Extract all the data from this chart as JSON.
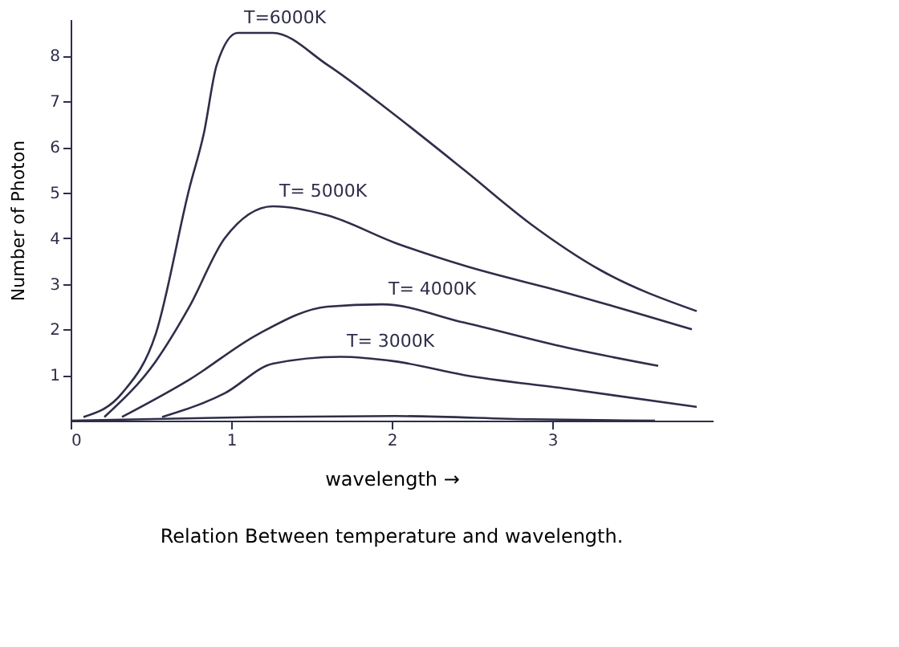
{
  "chart_data": {
    "type": "line",
    "title": "Relation Between temperature and wavelength.",
    "xlabel": "wavelength →",
    "ylabel": "Number of Photon",
    "xlim": [
      0,
      4
    ],
    "xticks": [
      0,
      1,
      2,
      3
    ],
    "ylim": [
      0,
      8.8
    ],
    "yticks": [
      1,
      2,
      3,
      4,
      5,
      6,
      7,
      8
    ],
    "grid": false,
    "marker": "none",
    "line_style": "solid",
    "series": [
      {
        "name": "T=6000K",
        "color": "#2e2e4a",
        "x": [
          0.08,
          0.32,
          0.53,
          0.74,
          0.83,
          0.91,
          1.04,
          1.26,
          1.6,
          2.02,
          2.45,
          2.87,
          3.3,
          3.9
        ],
        "values": [
          0.08,
          0.6,
          1.9,
          5.1,
          6.3,
          7.8,
          8.5,
          8.5,
          7.8,
          6.7,
          5.5,
          4.3,
          3.3,
          2.4
        ]
      },
      {
        "name": "T= 5000K",
        "color": "#2e2e4a",
        "x": [
          0.21,
          0.53,
          0.74,
          0.96,
          1.26,
          1.6,
          2.02,
          2.45,
          3.09,
          3.87
        ],
        "values": [
          0.08,
          1.3,
          2.5,
          4.0,
          4.7,
          4.5,
          3.9,
          3.4,
          2.8,
          2.0
        ]
      },
      {
        "name": "T= 4000K",
        "color": "#2e2e4a",
        "x": [
          0.32,
          0.74,
          1.17,
          1.6,
          1.94,
          2.45,
          3.09,
          3.66
        ],
        "values": [
          0.08,
          0.9,
          1.9,
          2.5,
          2.55,
          2.15,
          1.6,
          1.2
        ]
      },
      {
        "name": "T= 3000K",
        "color": "#2e2e4a",
        "x": [
          0.57,
          0.96,
          1.26,
          1.68,
          2.02,
          2.45,
          3.09,
          3.9
        ],
        "values": [
          0.08,
          0.6,
          1.25,
          1.4,
          1.3,
          1.0,
          0.7,
          0.3
        ]
      },
      {
        "color": "#2e2e4a",
        "x": [
          0,
          1.17,
          2.02,
          2.87,
          3.64
        ],
        "values": [
          0,
          0.08,
          0.1,
          0.03,
          0.0
        ]
      }
    ]
  }
}
